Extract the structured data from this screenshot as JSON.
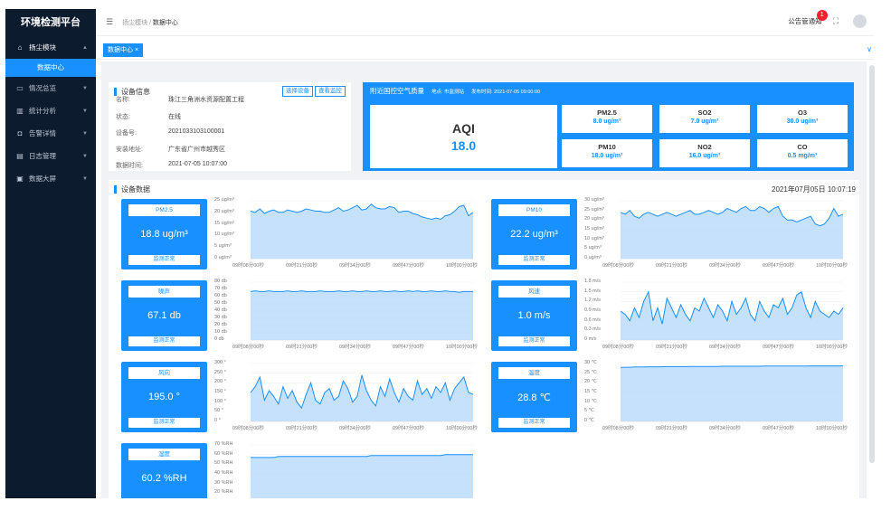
{
  "app": {
    "title": "环境检测平台"
  },
  "sidebar": {
    "items": [
      {
        "label": "扬尘模块"
      },
      {
        "label": "情况总览"
      },
      {
        "label": "统计分析"
      },
      {
        "label": "告警详情"
      },
      {
        "label": "日志管理"
      },
      {
        "label": "数据大屏"
      }
    ],
    "sub_item": "数据中心"
  },
  "breadcrumb": {
    "parent": "扬尘模块",
    "current": "数据中心"
  },
  "header": {
    "notice_label": "公告管通知",
    "notice_count": "1"
  },
  "tabs": [
    {
      "label": "数据中心"
    }
  ],
  "colors": {
    "accent": "#1890ff",
    "sidebar": "#0d1b2f",
    "area_fill": "#bcdcfb"
  },
  "device": {
    "title": "设备信息",
    "select_btn": "选择设备",
    "view_btn": "查看监控",
    "rows": [
      {
        "k": "名称:",
        "v": "珠江三角洲水资源配置工程"
      },
      {
        "k": "状态:",
        "v": "在线"
      },
      {
        "k": "设备号:",
        "v": "2021033103100001"
      },
      {
        "k": "安装地址:",
        "v": "广东省广州市越秀区"
      },
      {
        "k": "数据时间:",
        "v": "2021-07-05 10:07:00"
      }
    ]
  },
  "aqi": {
    "title": "附近国控空气质量",
    "station": "地点: 市监测站",
    "publish_time": "发布时间: 2021-07-05 09:00:00",
    "label": "AQI",
    "value": "18.0",
    "pollutants": [
      {
        "name": "PM2.5",
        "value": "8.0 ug/m³"
      },
      {
        "name": "SO2",
        "value": "7.0 ug/m³"
      },
      {
        "name": "O3",
        "value": "30.0 ug/m³"
      },
      {
        "name": "PM10",
        "value": "18.0 ug/m³"
      },
      {
        "name": "NO2",
        "value": "16.0 ug/m³"
      },
      {
        "name": "CO",
        "value": "0.5 mg/m³"
      }
    ]
  },
  "monitor": {
    "title": "设备数据",
    "datetime": "2021年07月05日 10:07:19"
  },
  "metrics": [
    {
      "name": "PM2.5",
      "value": "18.8 ug/m³",
      "status": "监测正常"
    },
    {
      "name": "PM10",
      "value": "22.2 ug/m³",
      "status": "监测正常"
    },
    {
      "name": "噪声",
      "value": "67.1 db",
      "status": "监测正常"
    },
    {
      "name": "风速",
      "value": "1.0 m/s",
      "status": "监测正常"
    },
    {
      "name": "风向",
      "value": "195.0 °",
      "status": "监测正常"
    },
    {
      "name": "温度",
      "value": "28.8 ℃",
      "status": "监测正常"
    },
    {
      "name": "湿度",
      "value": "60.2 %RH",
      "status": "监测正常"
    }
  ],
  "chart_data": [
    {
      "type": "area",
      "name": "PM2.5",
      "ylim": [
        0,
        25
      ],
      "y_ticks": [
        "0 ug/m³",
        "5 ug/m³",
        "10 ug/m³",
        "15 ug/m³",
        "20 ug/m³",
        "25 ug/m³"
      ],
      "x_ticks": [
        "09时08分00秒",
        "09时21分00秒",
        "09时34分00秒",
        "09时47分00秒",
        "10时00分00秒"
      ],
      "values": [
        20.5,
        20,
        21.5,
        19.5,
        20.5,
        21,
        20,
        20,
        21,
        20.5,
        20,
        20.5,
        21.5,
        21,
        20.5,
        20.5,
        20,
        20,
        21,
        22,
        20.5,
        21,
        22,
        23,
        21,
        21.5,
        23.5,
        22,
        21.5,
        21.5,
        22.5,
        22,
        20,
        20.5,
        20.5,
        19.5,
        19,
        18,
        17.5,
        17,
        17.5,
        17,
        18.5,
        19,
        20.5,
        22.5,
        23,
        18.5,
        20
      ]
    },
    {
      "type": "area",
      "name": "PM10",
      "ylim": [
        0,
        30
      ],
      "y_ticks": [
        "0 ug/m³",
        "5 ug/m³",
        "10 ug/m³",
        "15 ug/m³",
        "20 ug/m³",
        "25 ug/m³",
        "30 ug/m³"
      ],
      "x_ticks": [
        "09时08分00秒",
        "09时21分00秒",
        "09时34分00秒",
        "09时47分00秒",
        "10时00分00秒"
      ],
      "values": [
        24,
        23,
        25,
        22,
        21,
        23,
        24,
        23,
        22,
        23,
        24,
        23,
        22,
        23,
        24,
        25,
        23,
        23,
        24,
        25,
        24,
        23,
        24,
        26,
        25,
        24,
        26,
        27,
        25,
        25,
        27,
        26,
        24,
        26,
        27,
        22,
        20,
        20,
        19,
        20,
        21,
        22,
        18,
        17,
        18,
        21,
        26,
        22,
        23
      ]
    },
    {
      "type": "area",
      "name": "噪声",
      "ylim": [
        0,
        80
      ],
      "y_ticks": [
        "0 db",
        "10 db",
        "20 db",
        "30 db",
        "40 db",
        "50 db",
        "60 db",
        "70 db",
        "80 db"
      ],
      "x_ticks": [
        "09时08分00秒",
        "09时21分00秒",
        "09时34分00秒",
        "09时47分00秒",
        "10时00分00秒"
      ],
      "values": [
        67,
        68,
        67,
        67,
        68,
        67,
        67,
        67,
        68,
        67,
        67,
        68,
        67,
        67,
        67,
        68,
        67,
        67,
        67,
        68,
        67,
        67,
        68,
        67,
        67,
        68,
        67,
        67,
        68,
        67,
        67,
        68,
        67,
        67,
        68,
        67,
        68,
        67,
        67,
        68,
        67,
        67,
        68,
        67,
        67,
        66,
        67,
        67,
        67
      ]
    },
    {
      "type": "area",
      "name": "风速",
      "ylim": [
        0,
        1.8
      ],
      "y_ticks": [
        "0 m/s",
        "0.3 m/s",
        "0.6 m/s",
        "0.9 m/s",
        "1.2 m/s",
        "1.5 m/s",
        "1.8 m/s"
      ],
      "x_ticks": [
        "09时08分00秒",
        "09时21分00秒",
        "09时34分00秒",
        "09时47分00秒",
        "10时00分00秒"
      ],
      "values": [
        0.9,
        0.8,
        0.6,
        1.0,
        0.7,
        1.2,
        1.5,
        0.6,
        1.0,
        0.5,
        1.3,
        1.0,
        0.7,
        1.1,
        0.8,
        0.6,
        1.0,
        0.9,
        1.3,
        1.0,
        0.7,
        1.1,
        0.9,
        0.6,
        1.2,
        0.8,
        1.0,
        1.3,
        0.8,
        0.6,
        1.2,
        0.9,
        0.7,
        1.1,
        1.0,
        1.3,
        0.8,
        1.0,
        1.4,
        1.5,
        1.0,
        0.7,
        1.2,
        0.9,
        0.8,
        0.7,
        0.9,
        0.8,
        1.0
      ]
    },
    {
      "type": "area",
      "name": "风向",
      "ylim": [
        0,
        300
      ],
      "y_ticks": [
        "0 °",
        "50 °",
        "100 °",
        "150 °",
        "200 °",
        "250 °",
        "300 °"
      ],
      "x_ticks": [
        "09时08分00秒",
        "09时21分00秒",
        "09时34分00秒",
        "09时47分00秒",
        "10时00分00秒"
      ],
      "values": [
        150,
        180,
        230,
        110,
        160,
        130,
        90,
        180,
        120,
        160,
        100,
        70,
        140,
        200,
        110,
        90,
        150,
        170,
        110,
        130,
        210,
        170,
        100,
        130,
        240,
        160,
        110,
        80,
        180,
        130,
        220,
        150,
        100,
        170,
        130,
        110,
        210,
        140,
        170,
        120,
        180,
        150,
        200,
        110,
        170,
        200,
        230,
        150,
        140
      ]
    },
    {
      "type": "area",
      "name": "温度",
      "ylim": [
        0,
        30
      ],
      "y_ticks": [
        "0 ℃",
        "5 ℃",
        "10 ℃",
        "15 ℃",
        "20 ℃",
        "25 ℃",
        "30 ℃"
      ],
      "x_ticks": [
        "09时08分00秒",
        "09时21分00秒",
        "09时34分00秒",
        "09时47分00秒",
        "10时00分00秒"
      ],
      "values": [
        28.0,
        28.1,
        28.1,
        28.2,
        28.2,
        28.2,
        28.3,
        28.3,
        28.3,
        28.3,
        28.4,
        28.4,
        28.4,
        28.4,
        28.4,
        28.5,
        28.5,
        28.5,
        28.5,
        28.5,
        28.5,
        28.5,
        28.6,
        28.6,
        28.6,
        28.6,
        28.6,
        28.6,
        28.6,
        28.6,
        28.6,
        28.7,
        28.7,
        28.7,
        28.7,
        28.7,
        28.7,
        28.7,
        28.7,
        28.7,
        28.7,
        28.8,
        28.8,
        28.8,
        28.8,
        28.8,
        28.8,
        28.8,
        28.8
      ]
    },
    {
      "type": "area",
      "name": "湿度",
      "ylim": [
        10,
        70
      ],
      "y_ticks": [
        "10 %RH",
        "20 %RH",
        "30 %RH",
        "40 %RH",
        "50 %RH",
        "60 %RH",
        "70 %RH"
      ],
      "x_ticks": [],
      "values": [
        57,
        57,
        57,
        57,
        57,
        57,
        58,
        58,
        58,
        58,
        58,
        58,
        58,
        58,
        58,
        58,
        58,
        58,
        58,
        58,
        58,
        58,
        58,
        58,
        58,
        58,
        59,
        59,
        59,
        59,
        59,
        59,
        59,
        59,
        59,
        59,
        59,
        59,
        59,
        59,
        59,
        59,
        60,
        60,
        60,
        60,
        60,
        60,
        60
      ]
    }
  ]
}
